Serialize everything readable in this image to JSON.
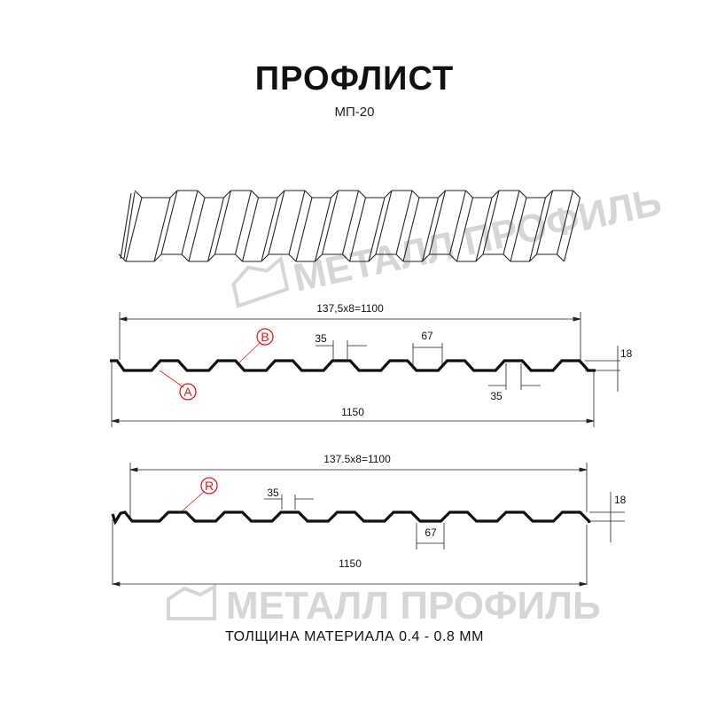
{
  "header": {
    "title": "ПРОФЛИСТ",
    "subtitle": "МП-20"
  },
  "watermark": {
    "text": "МЕТАЛЛ ПРОФИЛЬ"
  },
  "profile_a": {
    "pitch_label": "137,5x8=1100",
    "rib_top_label": "35",
    "rib_pitch_label": "67",
    "rib_bottom_label": "35",
    "height_label": "18",
    "total_label": "1150",
    "marker_a": "A",
    "marker_b": "B"
  },
  "profile_b": {
    "pitch_label": "137.5x8=1100",
    "rib_top_label": "35",
    "rib_pitch_label": "67",
    "height_label": "18",
    "total_label": "1150",
    "marker_r": "R"
  },
  "colors": {
    "marker": "#e21b1b",
    "line": "#111111",
    "watermark": "#d6d6d6"
  },
  "footer": {
    "text": "ТОЛЩИНА МАТЕРИАЛА 0.4 - 0.8 ММ"
  }
}
